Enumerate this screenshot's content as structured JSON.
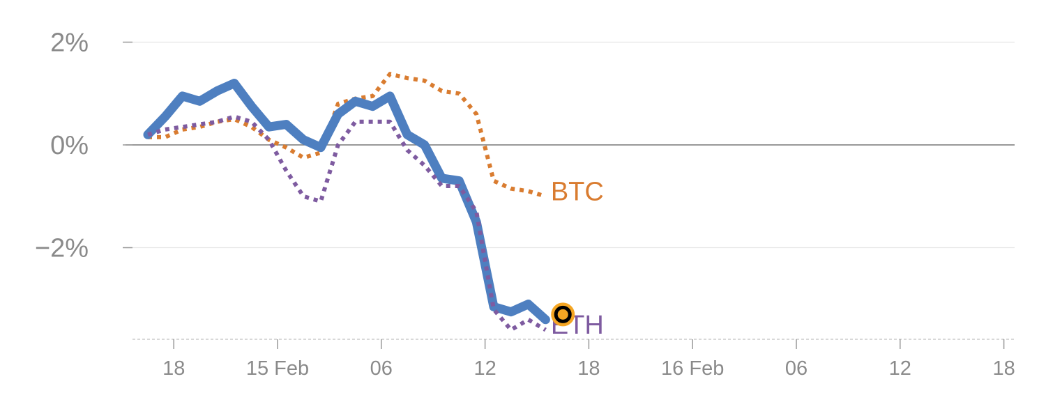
{
  "chart_data": {
    "type": "line",
    "title": "",
    "xlabel": "",
    "ylabel": "",
    "y_ticks": [
      {
        "value": 2,
        "label": "2%"
      },
      {
        "value": 0,
        "label": "0%"
      },
      {
        "value": -2,
        "label": "−2%"
      }
    ],
    "ylim": [
      -3.8,
      2.2
    ],
    "x_range": [
      0,
      52
    ],
    "x_ticks": [
      {
        "x": 1.5,
        "label": "18"
      },
      {
        "x": 7.5,
        "label": "15 Feb"
      },
      {
        "x": 13.5,
        "label": "06"
      },
      {
        "x": 19.5,
        "label": "12"
      },
      {
        "x": 25.5,
        "label": "18"
      },
      {
        "x": 31.5,
        "label": "16 Feb"
      },
      {
        "x": 37.5,
        "label": "06"
      },
      {
        "x": 43.5,
        "label": "12"
      },
      {
        "x": 49.5,
        "label": "18"
      }
    ],
    "grid": true,
    "colors": {
      "main": "#4e7fc0",
      "BTC": "#d97c30",
      "ETH": "#7e5ba0",
      "marker_fill": "#f5a623",
      "marker_ring": "#000000",
      "zero_line": "#777777",
      "grid": "#e6e6e6",
      "axis": "#cccccc"
    },
    "series": [
      {
        "name": "",
        "style": "solid",
        "color": "#4e7fc0",
        "x": [
          0,
          1,
          2,
          3,
          4,
          5,
          6,
          7,
          8,
          9,
          10,
          11,
          12,
          13,
          14,
          15,
          16,
          17,
          18,
          19,
          20,
          21,
          22,
          23
        ],
        "y": [
          0.2,
          0.55,
          0.95,
          0.85,
          1.05,
          1.2,
          0.75,
          0.35,
          0.4,
          0.1,
          -0.05,
          0.6,
          0.85,
          0.75,
          0.95,
          0.2,
          0.0,
          -0.65,
          -0.7,
          -1.5,
          -3.15,
          -3.25,
          -3.1,
          -3.4
        ]
      },
      {
        "name": "BTC",
        "style": "dotted",
        "color": "#d97c30",
        "x": [
          0,
          1,
          2,
          3,
          4,
          5,
          6,
          7,
          8,
          9,
          10,
          11,
          12,
          13,
          14,
          15,
          16,
          17,
          18,
          19,
          20,
          21,
          22,
          23
        ],
        "y": [
          0.15,
          0.15,
          0.3,
          0.35,
          0.45,
          0.5,
          0.35,
          0.1,
          -0.05,
          -0.25,
          -0.15,
          0.8,
          0.9,
          0.95,
          1.38,
          1.3,
          1.25,
          1.05,
          1.0,
          0.6,
          -0.7,
          -0.85,
          -0.9,
          -1.0
        ]
      },
      {
        "name": "ETH",
        "style": "dotted",
        "color": "#7e5ba0",
        "x": [
          0,
          1,
          2,
          3,
          4,
          5,
          6,
          7,
          8,
          9,
          10,
          11,
          12,
          13,
          14,
          15,
          16,
          17,
          18,
          19,
          20,
          21,
          22,
          23
        ],
        "y": [
          0.2,
          0.3,
          0.35,
          0.4,
          0.45,
          0.55,
          0.45,
          0.1,
          -0.5,
          -1.0,
          -1.1,
          0.0,
          0.45,
          0.45,
          0.45,
          -0.1,
          -0.4,
          -0.8,
          -0.8,
          -1.3,
          -3.2,
          -3.6,
          -3.4,
          -3.6
        ]
      }
    ],
    "labels": [
      {
        "text": "BTC",
        "x": 23.3,
        "y": -0.9,
        "color": "#d97c30"
      },
      {
        "text": "ETH",
        "x": 23.3,
        "y": -3.5,
        "color": "#7e5ba0"
      }
    ],
    "marker": {
      "x": 24,
      "y": -3.3
    }
  }
}
